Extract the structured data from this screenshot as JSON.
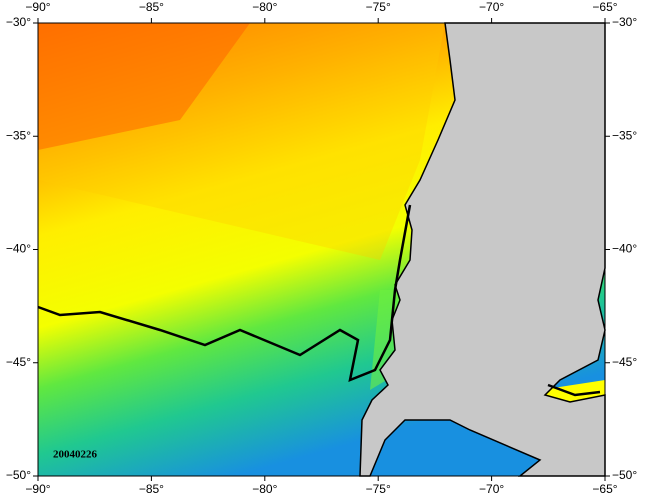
{
  "map": {
    "xlim": [
      -90,
      -65
    ],
    "ylim": [
      -50,
      -30
    ],
    "xticks": [
      {
        "value": -90,
        "label": "−90°"
      },
      {
        "value": -85,
        "label": "−85°"
      },
      {
        "value": -80,
        "label": "−80°"
      },
      {
        "value": -75,
        "label": "−75°"
      },
      {
        "value": -70,
        "label": "−70°"
      },
      {
        "value": -65,
        "label": "−65°"
      }
    ],
    "yticks": [
      {
        "value": -30,
        "label": "−30°"
      },
      {
        "value": -35,
        "label": "−35°"
      },
      {
        "value": -40,
        "label": "−40°"
      },
      {
        "value": -45,
        "label": "−45°"
      },
      {
        "value": -50,
        "label": "−50°"
      }
    ],
    "date_label": "20040226"
  }
}
